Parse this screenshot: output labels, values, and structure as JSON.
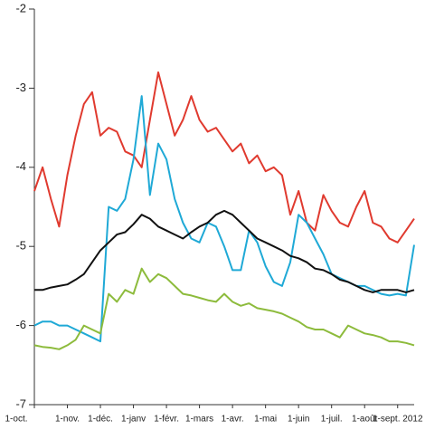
{
  "chart_data": {
    "type": "line",
    "categories": [
      "1-oct.",
      null,
      null,
      null,
      "1-nov.",
      null,
      null,
      null,
      "1-déc.",
      null,
      null,
      null,
      "1-janv",
      null,
      null,
      null,
      "1-févr.",
      null,
      null,
      null,
      "1-mars",
      null,
      null,
      null,
      "1-avr.",
      null,
      null,
      null,
      "1-mai",
      null,
      null,
      null,
      "1-juin",
      null,
      null,
      null,
      "1-juil.",
      null,
      null,
      null,
      "1-août",
      null,
      null,
      null,
      "1-sept. 2012",
      null,
      null
    ],
    "series": [
      {
        "color": "#e03a2f",
        "values": [
          -4.3,
          -4.0,
          -4.4,
          -4.75,
          -4.1,
          -3.6,
          -3.2,
          -3.05,
          -3.6,
          -3.5,
          -3.55,
          -3.8,
          -3.85,
          -4.0,
          -3.4,
          -2.8,
          -3.2,
          -3.6,
          -3.4,
          -3.1,
          -3.4,
          -3.55,
          -3.5,
          -3.65,
          -3.8,
          -3.7,
          -3.95,
          -3.85,
          -4.05,
          -4.0,
          -4.1,
          -4.6,
          -4.3,
          -4.7,
          -4.8,
          -4.35,
          -4.55,
          -4.7,
          -4.75,
          -4.5,
          -4.3,
          -4.7,
          -4.75,
          -4.9,
          -4.95,
          -4.8,
          -4.65
        ]
      },
      {
        "color": "#1fa9d6",
        "values": [
          -6.0,
          -5.95,
          -5.95,
          -6.0,
          -6.0,
          -6.05,
          -6.1,
          -6.15,
          -6.2,
          -4.5,
          -4.55,
          -4.4,
          -3.9,
          -3.1,
          -4.35,
          -3.7,
          -3.9,
          -4.4,
          -4.7,
          -4.9,
          -4.95,
          -4.7,
          -4.75,
          -5.0,
          -5.3,
          -5.3,
          -4.8,
          -4.95,
          -5.25,
          -5.45,
          -5.5,
          -5.2,
          -4.6,
          -4.7,
          -4.9,
          -5.1,
          -5.35,
          -5.4,
          -5.45,
          -5.5,
          -5.5,
          -5.55,
          -5.6,
          -5.62,
          -5.6,
          -5.62,
          -4.98
        ]
      },
      {
        "color": "#111111",
        "values": [
          -5.55,
          -5.55,
          -5.52,
          -5.5,
          -5.48,
          -5.42,
          -5.35,
          -5.2,
          -5.05,
          -4.95,
          -4.85,
          -4.82,
          -4.72,
          -4.6,
          -4.65,
          -4.75,
          -4.8,
          -4.85,
          -4.9,
          -4.82,
          -4.75,
          -4.7,
          -4.6,
          -4.55,
          -4.6,
          -4.7,
          -4.8,
          -4.9,
          -4.95,
          -5.0,
          -5.05,
          -5.12,
          -5.15,
          -5.2,
          -5.28,
          -5.3,
          -5.35,
          -5.42,
          -5.45,
          -5.5,
          -5.55,
          -5.58,
          -5.55,
          -5.55,
          -5.55,
          -5.58,
          -5.55
        ]
      },
      {
        "color": "#8dbb3c",
        "values": [
          -6.25,
          -6.27,
          -6.28,
          -6.3,
          -6.25,
          -6.18,
          -6.0,
          -6.05,
          -6.1,
          -5.6,
          -5.7,
          -5.55,
          -5.6,
          -5.28,
          -5.45,
          -5.35,
          -5.4,
          -5.5,
          -5.6,
          -5.62,
          -5.65,
          -5.68,
          -5.7,
          -5.6,
          -5.7,
          -5.75,
          -5.72,
          -5.78,
          -5.8,
          -5.82,
          -5.85,
          -5.9,
          -5.95,
          -6.02,
          -6.05,
          -6.05,
          -6.1,
          -6.15,
          -6.0,
          -6.05,
          -6.1,
          -6.12,
          -6.15,
          -6.2,
          -6.2,
          -6.22,
          -6.25
        ]
      }
    ],
    "ylim": [
      -7,
      -2
    ],
    "yticks": [
      -2,
      -3,
      -4,
      -5,
      -6,
      -7
    ]
  }
}
